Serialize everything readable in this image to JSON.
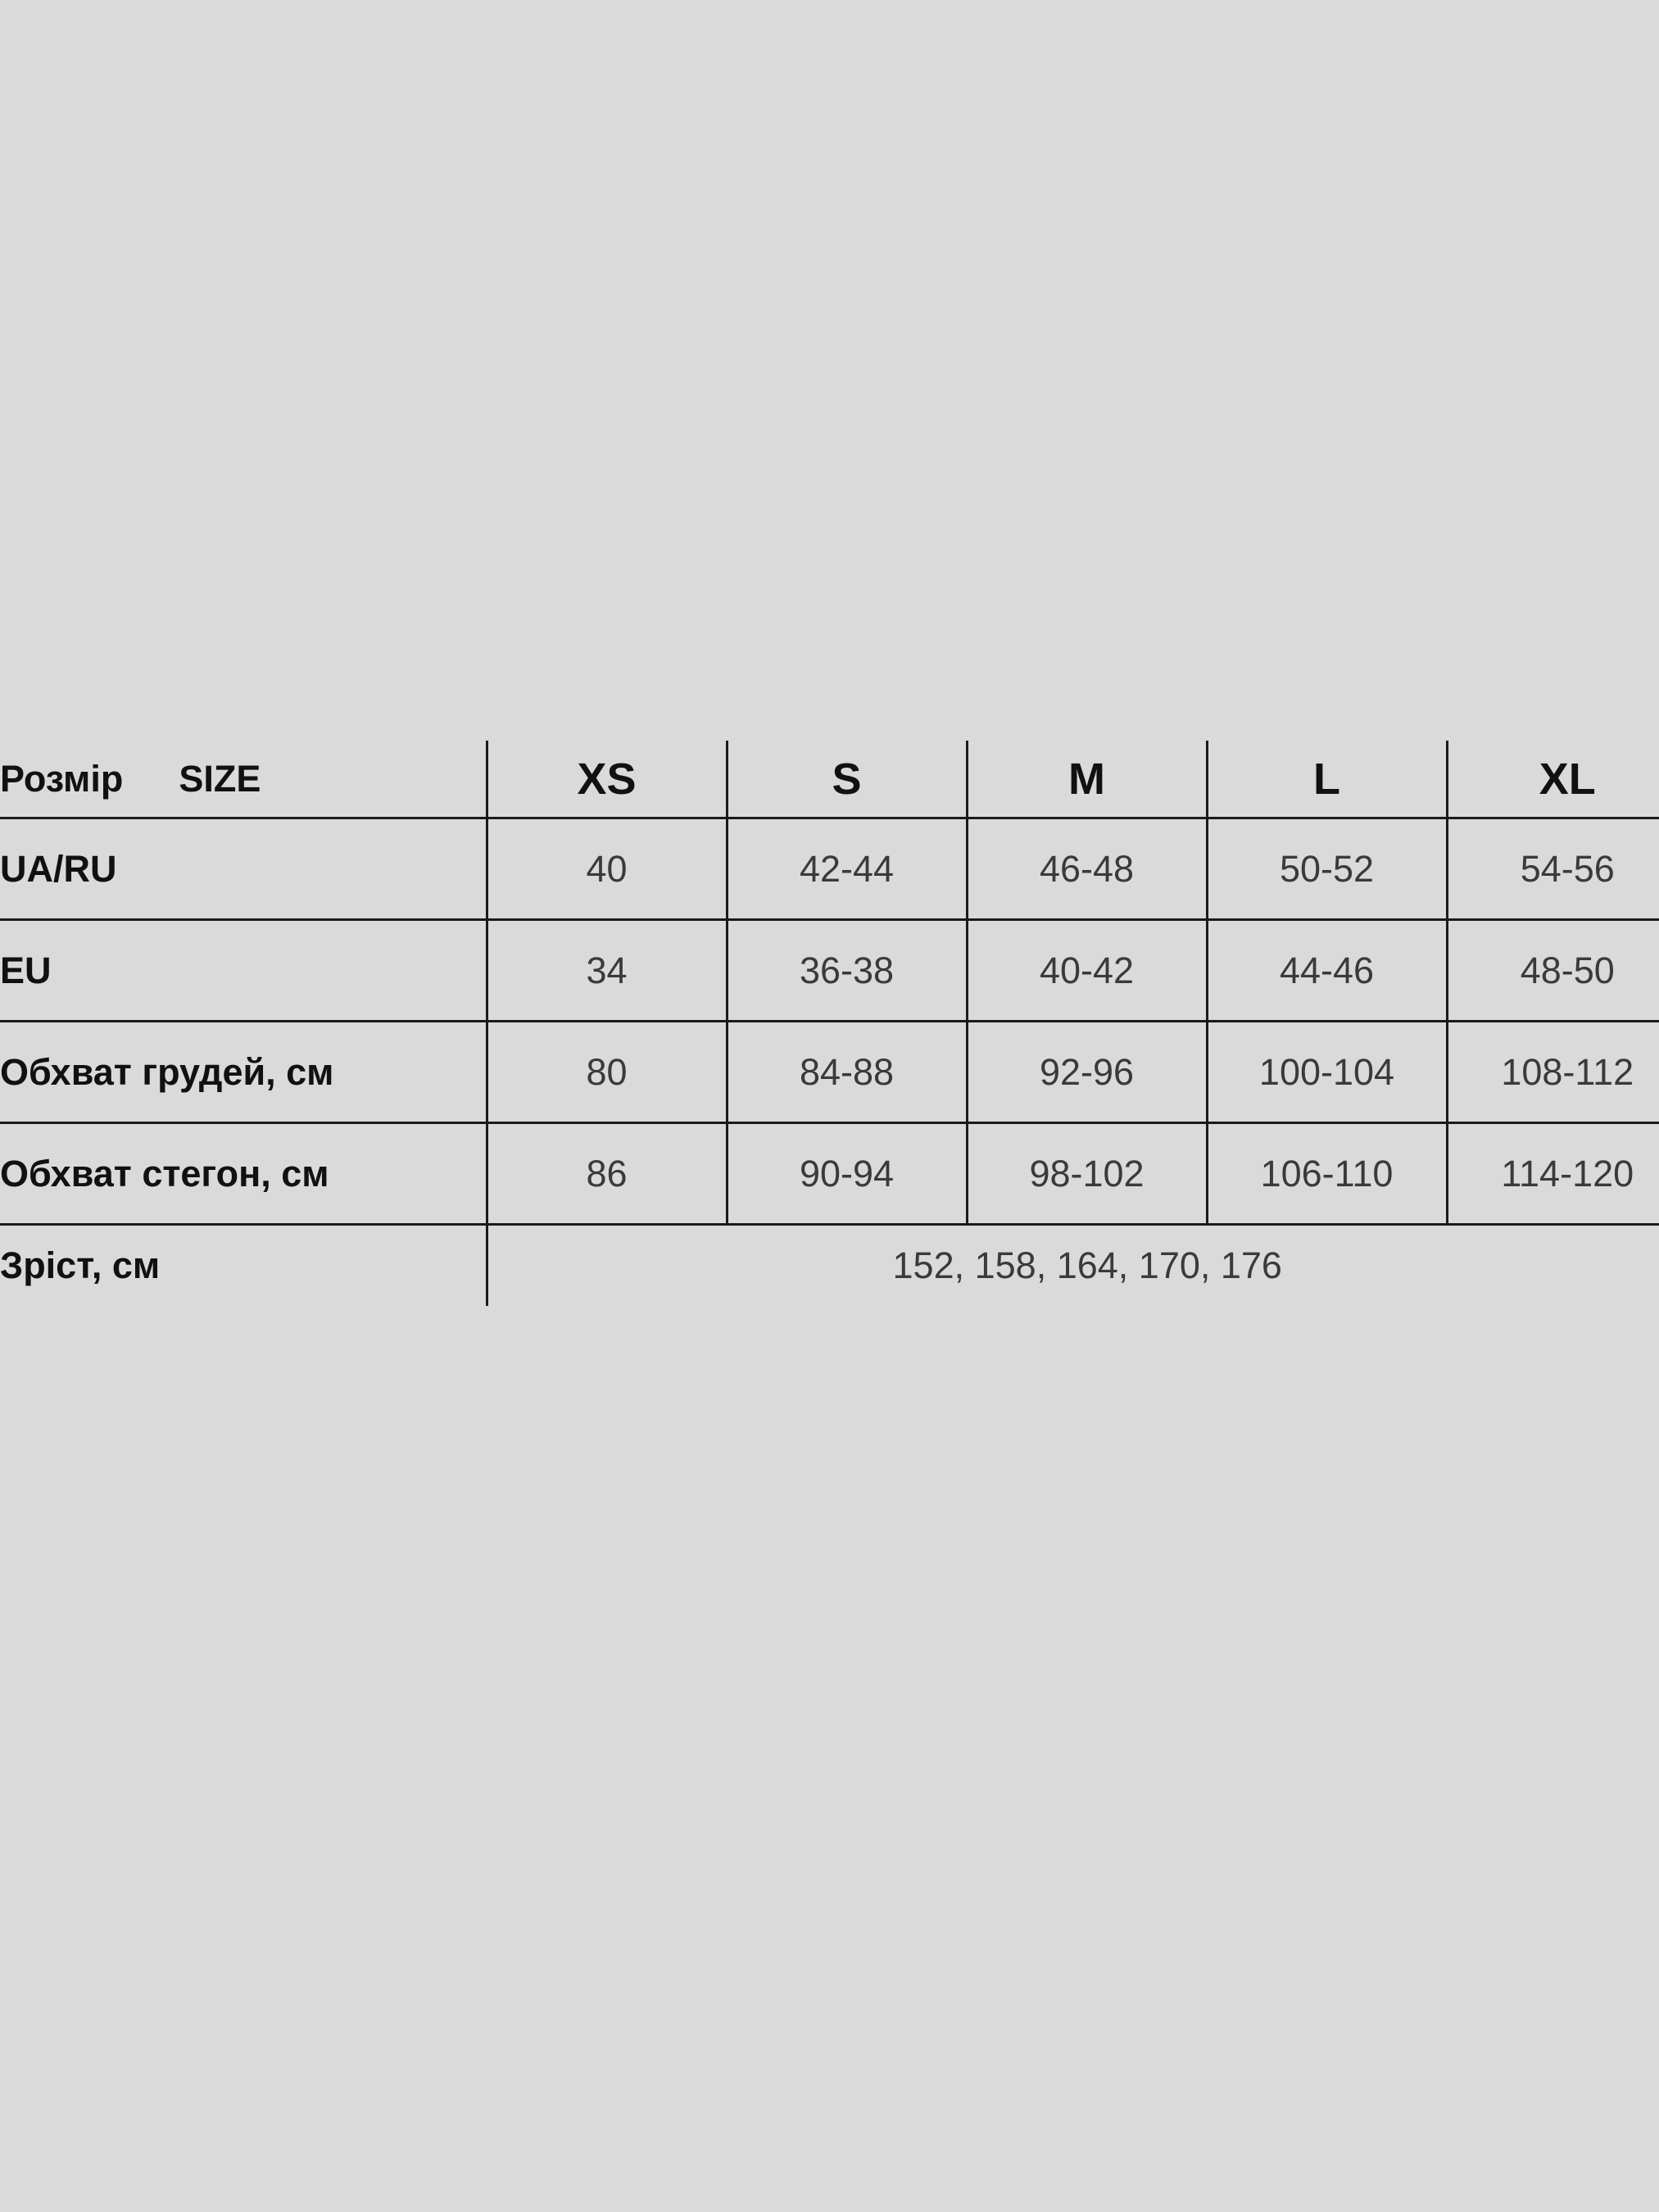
{
  "header": {
    "label_ua": "Розмір",
    "label_en": "SIZE",
    "sizes": [
      "XS",
      "S",
      "M",
      "L",
      "XL"
    ]
  },
  "rows": [
    {
      "label": "UA/RU",
      "values": [
        "40",
        "42-44",
        "46-48",
        "50-52",
        "54-56"
      ]
    },
    {
      "label": "EU",
      "values": [
        "34",
        "36-38",
        "40-42",
        "44-46",
        "48-50"
      ]
    },
    {
      "label": "Обхват грудей, см",
      "values": [
        "80",
        "84-88",
        "92-96",
        "100-104",
        "108-112"
      ]
    },
    {
      "label": "Обхват стегон, см",
      "values": [
        "86",
        "90-94",
        "98-102",
        "106-110",
        "114-120"
      ]
    }
  ],
  "height_row": {
    "label": "Зріст, см",
    "value": "152, 158, 164, 170, 176"
  },
  "colors": {
    "background": "#dadada",
    "lines": "#1a1a1a",
    "text": "#111111"
  }
}
